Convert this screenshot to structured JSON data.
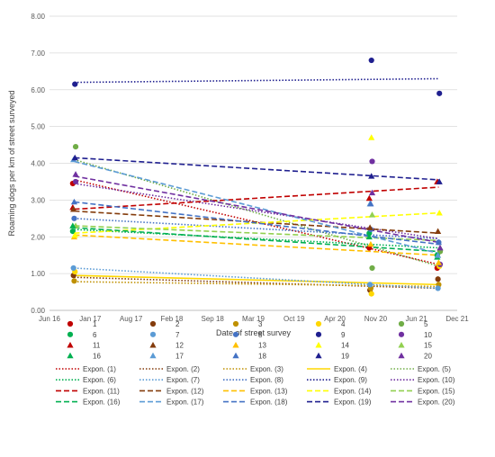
{
  "chart_data": {
    "type": "scatter",
    "title": "",
    "xlabel": "Date of street survey",
    "ylabel": "Roaming dogs per km of street surveyed",
    "x_ticks": [
      "Jun 16",
      "Jan 17",
      "Aug 17",
      "Feb 18",
      "Sep 18",
      "Mar 19",
      "Oct 19",
      "Apr 20",
      "Nov 20",
      "Jun 21",
      "Dec 21"
    ],
    "y_ticks": [
      "0.00",
      "1.00",
      "2.00",
      "3.00",
      "4.00",
      "5.00",
      "6.00",
      "7.00",
      "8.00"
    ],
    "ylim": [
      0,
      8
    ],
    "xlim": [
      "2016-06",
      "2021-12"
    ],
    "grid": "horizontal",
    "legend_position": "bottom",
    "survey_dates": [
      "2016-10",
      "2020-10",
      "2021-09"
    ],
    "series": [
      {
        "name": "1",
        "marker": "circle",
        "color": "#c00000",
        "values": [
          3.45,
          1.7,
          1.15
        ]
      },
      {
        "name": "2",
        "marker": "circle",
        "color": "#843c0c",
        "values": [
          0.95,
          0.55,
          0.85
        ]
      },
      {
        "name": "3",
        "marker": "circle",
        "color": "#bf9000",
        "values": [
          0.8,
          0.6,
          0.7
        ]
      },
      {
        "name": "4",
        "marker": "circle",
        "color": "#ffd700",
        "values": [
          1.05,
          0.45,
          1.2
        ]
      },
      {
        "name": "5",
        "marker": "circle",
        "color": "#70ad47",
        "values": [
          4.45,
          1.15,
          1.6
        ]
      },
      {
        "name": "6",
        "marker": "circle",
        "color": "#00b050",
        "values": [
          2.15,
          2.1,
          1.5
        ]
      },
      {
        "name": "7",
        "marker": "circle",
        "color": "#5b9bd5",
        "values": [
          1.15,
          0.7,
          0.6
        ]
      },
      {
        "name": "8",
        "marker": "circle",
        "color": "#4472c4",
        "values": [
          2.5,
          2.2,
          1.85
        ]
      },
      {
        "name": "9",
        "marker": "circle",
        "color": "#1f1f8f",
        "values": [
          6.15,
          6.8,
          5.9
        ]
      },
      {
        "name": "10",
        "marker": "circle",
        "color": "#7030a0",
        "values": [
          3.5,
          4.05,
          1.25
        ]
      },
      {
        "name": "11",
        "marker": "triangle",
        "color": "#c00000",
        "values": [
          2.8,
          3.05,
          3.5
        ]
      },
      {
        "name": "12",
        "marker": "triangle",
        "color": "#843c0c",
        "values": [
          2.75,
          2.25,
          2.15
        ]
      },
      {
        "name": "13",
        "marker": "triangle",
        "color": "#ffc000",
        "values": [
          2.0,
          1.8,
          1.3
        ]
      },
      {
        "name": "14",
        "marker": "triangle",
        "color": "#ffff00",
        "values": [
          2.05,
          4.7,
          2.65
        ]
      },
      {
        "name": "15",
        "marker": "triangle",
        "color": "#92d050",
        "values": [
          2.3,
          2.6,
          1.7
        ]
      },
      {
        "name": "16",
        "marker": "triangle",
        "color": "#00b050",
        "values": [
          2.3,
          2.0,
          1.45
        ]
      },
      {
        "name": "17",
        "marker": "triangle",
        "color": "#5b9bd5",
        "values": [
          4.1,
          2.9,
          1.5
        ]
      },
      {
        "name": "18",
        "marker": "triangle",
        "color": "#4472c4",
        "values": [
          2.95,
          2.9,
          1.85
        ]
      },
      {
        "name": "19",
        "marker": "triangle",
        "color": "#1f1f8f",
        "values": [
          4.15,
          3.65,
          3.5
        ]
      },
      {
        "name": "20",
        "marker": "triangle",
        "color": "#7030a0",
        "values": [
          3.7,
          3.2,
          1.7
        ]
      }
    ],
    "trendlines": [
      {
        "name": "Expon. (1)",
        "color": "#c00000",
        "dash": "dot",
        "start": 3.55,
        "end": 1.25
      },
      {
        "name": "Expon. (2)",
        "color": "#843c0c",
        "dash": "dot",
        "start": 0.9,
        "end": 0.6
      },
      {
        "name": "Expon. (3)",
        "color": "#bf9000",
        "dash": "dot",
        "start": 0.78,
        "end": 0.65
      },
      {
        "name": "Expon. (4)",
        "color": "#ffd700",
        "dash": "solid",
        "start": 0.95,
        "end": 0.7
      },
      {
        "name": "Expon. (5)",
        "color": "#70ad47",
        "dash": "dot",
        "start": 4.1,
        "end": 1.2
      },
      {
        "name": "Expon. (6)",
        "color": "#00b050",
        "dash": "dot",
        "start": 2.2,
        "end": 1.7
      },
      {
        "name": "Expon. (7)",
        "color": "#5b9bd5",
        "dash": "dot",
        "start": 1.15,
        "end": 0.6
      },
      {
        "name": "Expon. (8)",
        "color": "#4472c4",
        "dash": "dot",
        "start": 2.5,
        "end": 1.95
      },
      {
        "name": "Expon. (9)",
        "color": "#1f1f8f",
        "dash": "dot",
        "start": 6.2,
        "end": 6.3
      },
      {
        "name": "Expon. (10)",
        "color": "#7030a0",
        "dash": "dot",
        "start": 3.45,
        "end": 1.95
      },
      {
        "name": "Expon. (11)",
        "color": "#c00000",
        "dash": "dash",
        "start": 2.75,
        "end": 3.35
      },
      {
        "name": "Expon. (12)",
        "color": "#843c0c",
        "dash": "dash",
        "start": 2.7,
        "end": 2.1
      },
      {
        "name": "Expon. (13)",
        "color": "#ffc000",
        "dash": "dash",
        "start": 2.05,
        "end": 1.5
      },
      {
        "name": "Expon. (14)",
        "color": "#ffff00",
        "dash": "dash",
        "start": 2.1,
        "end": 2.65
      },
      {
        "name": "Expon. (15)",
        "color": "#92d050",
        "dash": "dash",
        "start": 2.3,
        "end": 1.9
      },
      {
        "name": "Expon. (16)",
        "color": "#00b050",
        "dash": "dash",
        "start": 2.25,
        "end": 1.6
      },
      {
        "name": "Expon. (17)",
        "color": "#5b9bd5",
        "dash": "dash",
        "start": 4.05,
        "end": 1.55
      },
      {
        "name": "Expon. (18)",
        "color": "#4472c4",
        "dash": "dash",
        "start": 2.95,
        "end": 1.8
      },
      {
        "name": "Expon. (19)",
        "color": "#1f1f8f",
        "dash": "dash",
        "start": 4.15,
        "end": 3.55
      },
      {
        "name": "Expon. (20)",
        "color": "#7030a0",
        "dash": "dash",
        "start": 3.65,
        "end": 1.85
      }
    ]
  }
}
